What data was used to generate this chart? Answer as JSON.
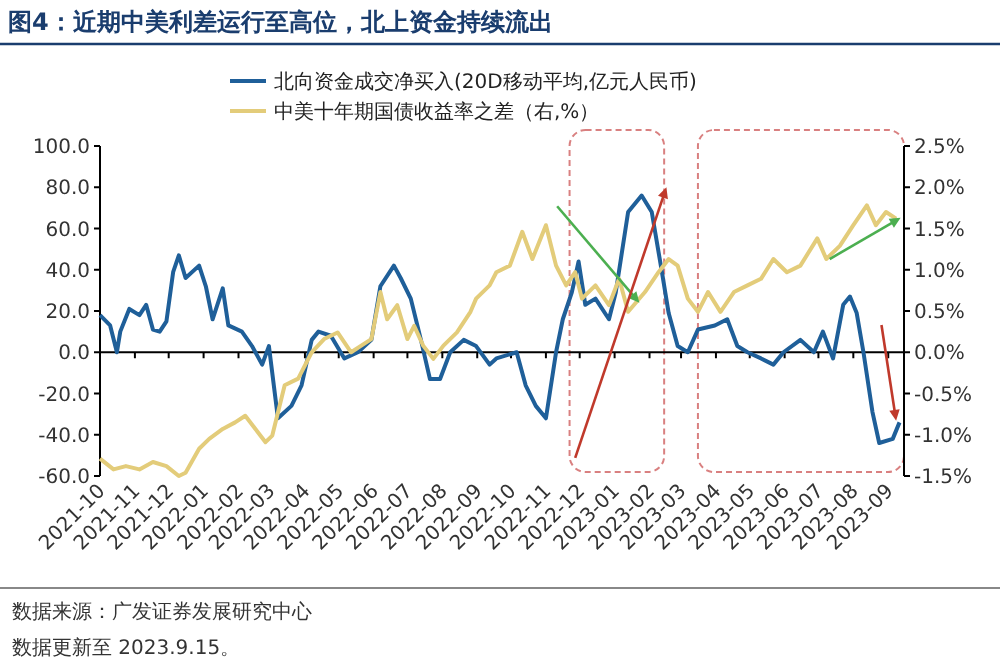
{
  "chart_data": {
    "type": "line",
    "title": "图4：近期中美利差运行至高位，北上资金持续流出",
    "xlim": [
      "2021-10-01",
      "2023-09-15"
    ],
    "xticks": [
      {
        "value": "2021-10-01",
        "label": "2021-10"
      },
      {
        "value": "2021-11-01",
        "label": "2021-11"
      },
      {
        "value": "2021-12-01",
        "label": "2021-12"
      },
      {
        "value": "2022-01-01",
        "label": "2022-01"
      },
      {
        "value": "2022-02-01",
        "label": "2022-02"
      },
      {
        "value": "2022-03-01",
        "label": "2022-03"
      },
      {
        "value": "2022-04-01",
        "label": "2022-04"
      },
      {
        "value": "2022-05-01",
        "label": "2022-05"
      },
      {
        "value": "2022-06-01",
        "label": "2022-06"
      },
      {
        "value": "2022-07-01",
        "label": "2022-07"
      },
      {
        "value": "2022-08-01",
        "label": "2022-08"
      },
      {
        "value": "2022-09-01",
        "label": "2022-09"
      },
      {
        "value": "2022-10-01",
        "label": "2022-10"
      },
      {
        "value": "2022-11-01",
        "label": "2022-11"
      },
      {
        "value": "2022-12-01",
        "label": "2022-12"
      },
      {
        "value": "2023-01-01",
        "label": "2023-01"
      },
      {
        "value": "2023-02-01",
        "label": "2023-02"
      },
      {
        "value": "2023-03-01",
        "label": "2023-03"
      },
      {
        "value": "2023-04-01",
        "label": "2023-04"
      },
      {
        "value": "2023-05-01",
        "label": "2023-05"
      },
      {
        "value": "2023-06-01",
        "label": "2023-06"
      },
      {
        "value": "2023-07-01",
        "label": "2023-07"
      },
      {
        "value": "2023-08-01",
        "label": "2023-08"
      },
      {
        "value": "2023-09-01",
        "label": "2023-09"
      }
    ],
    "ylim": [
      -60,
      100
    ],
    "yticks": [
      {
        "value": -60,
        "label": "-60.0"
      },
      {
        "value": -40,
        "label": "-40.0"
      },
      {
        "value": -20,
        "label": "-20.0"
      },
      {
        "value": 0,
        "label": "0.0"
      },
      {
        "value": 20,
        "label": "20.0"
      },
      {
        "value": 40,
        "label": "40.0"
      },
      {
        "value": 60,
        "label": "60.0"
      },
      {
        "value": 80,
        "label": "80.0"
      },
      {
        "value": 100,
        "label": "100.0"
      }
    ],
    "y2lim": [
      -1.5,
      2.5
    ],
    "y2ticks": [
      {
        "value": -1.5,
        "label": "-1.5%"
      },
      {
        "value": -1.0,
        "label": "-1.0%"
      },
      {
        "value": -0.5,
        "label": "-0.5%"
      },
      {
        "value": 0,
        "label": "0.0%"
      },
      {
        "value": 0.5,
        "label": "0.5%"
      },
      {
        "value": 1.0,
        "label": "1.0%"
      },
      {
        "value": 1.5,
        "label": "1.5%"
      },
      {
        "value": 2.0,
        "label": "2.0%"
      },
      {
        "value": 2.5,
        "label": "2.5%"
      }
    ],
    "legend": "top",
    "series": [
      {
        "name": "北向资金成交净买入(20D移动平均,亿元人民币)",
        "color": "#1f5f99",
        "x": [
          "2021-10-01",
          "2021-10-10",
          "2021-10-16",
          "2021-10-19",
          "2021-10-27",
          "2021-11-05",
          "2021-11-11",
          "2021-11-17",
          "2021-11-23",
          "2021-11-29",
          "2021-12-05",
          "2021-12-10",
          "2021-12-16",
          "2021-12-28",
          "2022-01-03",
          "2022-01-09",
          "2022-01-18",
          "2022-01-23",
          "2022-02-04",
          "2022-02-13",
          "2022-02-22",
          "2022-02-28",
          "2022-03-08",
          "2022-03-20",
          "2022-03-29",
          "2022-04-07",
          "2022-04-13",
          "2022-04-24",
          "2022-05-06",
          "2022-05-18",
          "2022-05-30",
          "2022-06-07",
          "2022-06-19",
          "2022-06-25",
          "2022-07-04",
          "2022-07-13",
          "2022-07-21",
          "2022-07-30",
          "2022-08-08",
          "2022-08-20",
          "2022-08-31",
          "2022-09-12",
          "2022-09-18",
          "2022-10-06",
          "2022-10-14",
          "2022-10-23",
          "2022-11-01",
          "2022-11-10",
          "2022-11-16",
          "2022-11-24",
          "2022-11-30",
          "2022-12-06",
          "2022-12-15",
          "2022-12-27",
          "2023-01-02",
          "2023-01-13",
          "2023-01-25",
          "2023-02-03",
          "2023-02-12",
          "2023-02-18",
          "2023-02-26",
          "2023-03-07",
          "2023-03-16",
          "2023-03-31",
          "2023-04-11",
          "2023-04-20",
          "2023-04-29",
          "2023-05-11",
          "2023-05-22",
          "2023-05-31",
          "2023-06-15",
          "2023-06-27",
          "2023-07-05",
          "2023-07-14",
          "2023-07-23",
          "2023-07-29",
          "2023-08-04",
          "2023-08-10",
          "2023-08-18",
          "2023-08-24",
          "2023-09-05",
          "2023-09-11"
        ],
        "values": [
          18,
          13,
          0,
          10,
          21,
          18,
          23,
          11,
          10,
          15,
          39,
          47,
          36,
          42,
          32,
          16,
          31,
          13,
          10,
          3,
          -6,
          3,
          -32,
          -26,
          -16,
          6,
          10,
          8,
          -3,
          0,
          6,
          32,
          42,
          36,
          26,
          6,
          -13,
          -13,
          0,
          6,
          3,
          -6,
          -3,
          0,
          -16,
          -26,
          -32,
          0,
          16,
          29,
          44,
          23,
          26,
          16,
          29,
          68,
          76,
          68,
          39,
          19,
          3,
          0,
          11,
          13,
          16,
          3,
          0,
          -3,
          -6,
          0,
          6,
          0,
          10,
          -3,
          23,
          27,
          19,
          0,
          -29,
          -44,
          -42,
          -34
        ]
      },
      {
        "name": "中美十年期国债收益率之差（右,%）",
        "color": "#e3cc7a",
        "axis": "y2",
        "x": [
          "2021-10-01",
          "2021-10-13",
          "2021-10-24",
          "2021-11-05",
          "2021-11-17",
          "2021-11-29",
          "2021-12-10",
          "2021-12-16",
          "2021-12-28",
          "2022-01-06",
          "2022-01-18",
          "2022-01-29",
          "2022-02-07",
          "2022-02-16",
          "2022-02-25",
          "2022-03-03",
          "2022-03-14",
          "2022-03-26",
          "2022-04-07",
          "2022-04-18",
          "2022-04-30",
          "2022-05-12",
          "2022-05-21",
          "2022-05-30",
          "2022-06-07",
          "2022-06-13",
          "2022-06-22",
          "2022-07-01",
          "2022-07-07",
          "2022-07-15",
          "2022-07-24",
          "2022-08-02",
          "2022-08-14",
          "2022-08-26",
          "2022-08-31",
          "2022-09-12",
          "2022-09-18",
          "2022-09-30",
          "2022-10-11",
          "2022-10-20",
          "2022-11-01",
          "2022-11-10",
          "2022-11-19",
          "2022-11-27",
          "2022-12-03",
          "2022-12-15",
          "2022-12-27",
          "2023-01-05",
          "2023-01-13",
          "2023-01-28",
          "2023-02-09",
          "2023-02-18",
          "2023-02-26",
          "2023-03-07",
          "2023-03-16",
          "2023-03-25",
          "2023-04-05",
          "2023-04-17",
          "2023-04-29",
          "2023-05-11",
          "2023-05-22",
          "2023-06-03",
          "2023-06-15",
          "2023-06-30",
          "2023-07-08",
          "2023-07-20",
          "2023-08-01",
          "2023-08-13",
          "2023-08-21",
          "2023-08-30",
          "2023-09-08"
        ],
        "values": [
          -1.29,
          -1.42,
          -1.38,
          -1.42,
          -1.33,
          -1.38,
          -1.5,
          -1.46,
          -1.17,
          -1.05,
          -0.93,
          -0.85,
          -0.77,
          -0.93,
          -1.09,
          -1.01,
          -0.4,
          -0.32,
          0,
          0.16,
          0.24,
          0,
          0.08,
          0.16,
          0.73,
          0.4,
          0.57,
          0.16,
          0.32,
          0.08,
          -0.08,
          0.08,
          0.24,
          0.49,
          0.65,
          0.81,
          0.97,
          1.05,
          1.46,
          1.13,
          1.54,
          1.05,
          0.81,
          0.97,
          0.65,
          0.81,
          0.57,
          0.89,
          0.49,
          0.73,
          0.97,
          1.13,
          1.05,
          0.65,
          0.49,
          0.73,
          0.49,
          0.73,
          0.81,
          0.89,
          1.13,
          0.97,
          1.05,
          1.38,
          1.13,
          1.29,
          1.54,
          1.78,
          1.54,
          1.7,
          1.62
        ]
      }
    ],
    "annotations": [
      "数据来源：广发证券发展研究中心",
      "数据更新至 2023.9.15。"
    ]
  }
}
